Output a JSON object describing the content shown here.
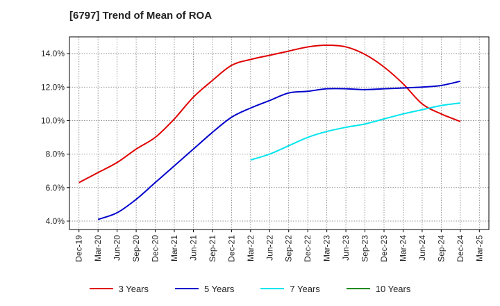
{
  "header": {
    "title": "[6797]  Trend of Mean of ROA"
  },
  "chart_data": {
    "type": "line",
    "title": "[6797]  Trend of Mean of ROA",
    "xlabel": "",
    "ylabel": "",
    "ylim": [
      3.5,
      15.0
    ],
    "y_ticks": [
      4.0,
      6.0,
      8.0,
      10.0,
      12.0,
      14.0
    ],
    "y_tick_labels": [
      "4.0%",
      "6.0%",
      "8.0%",
      "10.0%",
      "12.0%",
      "14.0%"
    ],
    "categories": [
      "Dec-19",
      "Mar-20",
      "Jun-20",
      "Sep-20",
      "Dec-20",
      "Mar-21",
      "Jun-21",
      "Sep-21",
      "Dec-21",
      "Mar-22",
      "Jun-22",
      "Sep-22",
      "Dec-22",
      "Mar-23",
      "Jun-23",
      "Sep-23",
      "Dec-23",
      "Mar-24",
      "Jun-24",
      "Sep-24",
      "Dec-24",
      "Mar-25"
    ],
    "grid": true,
    "legend_position": "bottom",
    "series": [
      {
        "name": "3 Years",
        "color": "#e00000",
        "values": [
          6.3,
          6.9,
          7.5,
          8.3,
          9.0,
          10.1,
          11.4,
          12.4,
          13.3,
          13.65,
          13.9,
          14.15,
          14.4,
          14.5,
          14.4,
          13.95,
          13.2,
          12.2,
          11.0,
          10.4,
          9.95,
          null
        ]
      },
      {
        "name": "5 Years",
        "color": "#0000cc",
        "values": [
          null,
          4.1,
          4.5,
          5.3,
          6.3,
          7.3,
          8.3,
          9.3,
          10.2,
          10.75,
          11.2,
          11.65,
          11.75,
          11.9,
          11.9,
          11.85,
          11.9,
          11.95,
          12.0,
          12.1,
          12.35,
          null
        ]
      },
      {
        "name": "7 Years",
        "color": "#00e5ee",
        "values": [
          null,
          null,
          null,
          null,
          null,
          null,
          null,
          null,
          null,
          7.65,
          8.0,
          8.5,
          9.0,
          9.35,
          9.6,
          9.8,
          10.1,
          10.4,
          10.65,
          10.9,
          11.05,
          null
        ]
      },
      {
        "name": "10 Years",
        "color": "#228b22",
        "values": [
          null,
          null,
          null,
          null,
          null,
          null,
          null,
          null,
          null,
          null,
          null,
          null,
          null,
          null,
          null,
          null,
          null,
          null,
          null,
          null,
          null,
          null
        ]
      }
    ]
  }
}
